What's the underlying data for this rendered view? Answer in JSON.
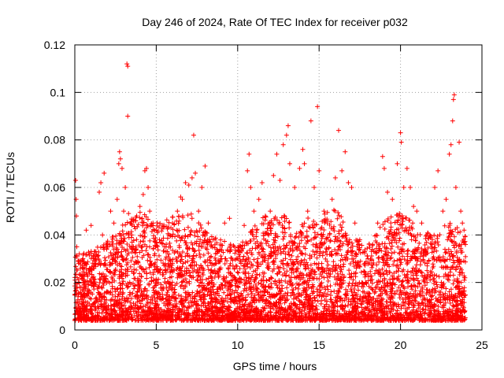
{
  "chart_data": {
    "type": "scatter",
    "title": "Day 246 of 2024, Rate Of TEC Index for receiver p032",
    "xlabel": "GPS time / hours",
    "ylabel": "ROTI / TECUs",
    "xlim": [
      0,
      25
    ],
    "ylim": [
      0,
      0.12
    ],
    "xticks": [
      0,
      5,
      10,
      15,
      20,
      25
    ],
    "xtick_labels": [
      "0",
      "5",
      "10",
      "15",
      "20",
      "25"
    ],
    "yticks": [
      0,
      0.02,
      0.04,
      0.06,
      0.08,
      0.1,
      0.12
    ],
    "ytick_labels": [
      "0",
      "0.02",
      "0.04",
      "0.06",
      "0.08",
      "0.1",
      "0.12"
    ],
    "grid": true,
    "marker": "plus",
    "marker_color": "#ff0000",
    "series": [
      {
        "name": "ROTI",
        "points": [
          [
            0.05,
            0.063
          ],
          [
            0.08,
            0.055
          ],
          [
            0.1,
            0.048
          ],
          [
            0.12,
            0.035
          ],
          [
            0.15,
            0.022
          ],
          [
            0.2,
            0.014
          ],
          [
            0.25,
            0.01
          ],
          [
            0.3,
            0.018
          ],
          [
            0.5,
            0.03
          ],
          [
            0.7,
            0.042
          ],
          [
            0.9,
            0.026
          ],
          [
            1.0,
            0.044
          ],
          [
            1.2,
            0.033
          ],
          [
            1.5,
            0.058
          ],
          [
            1.6,
            0.062
          ],
          [
            1.7,
            0.04
          ],
          [
            1.8,
            0.066
          ],
          [
            2.0,
            0.035
          ],
          [
            2.2,
            0.05
          ],
          [
            2.4,
            0.045
          ],
          [
            2.6,
            0.055
          ],
          [
            2.7,
            0.07
          ],
          [
            2.75,
            0.075
          ],
          [
            2.8,
            0.072
          ],
          [
            2.9,
            0.068
          ],
          [
            3.0,
            0.05
          ],
          [
            3.1,
            0.06
          ],
          [
            3.2,
            0.112
          ],
          [
            3.25,
            0.111
          ],
          [
            3.25,
            0.09
          ],
          [
            3.3,
            0.049
          ],
          [
            3.5,
            0.04
          ],
          [
            3.8,
            0.048
          ],
          [
            4.0,
            0.052
          ],
          [
            4.2,
            0.057
          ],
          [
            4.3,
            0.067
          ],
          [
            4.4,
            0.068
          ],
          [
            4.5,
            0.06
          ],
          [
            4.6,
            0.05
          ],
          [
            4.8,
            0.045
          ],
          [
            5.0,
            0.042
          ],
          [
            5.2,
            0.038
          ],
          [
            5.5,
            0.035
          ],
          [
            5.8,
            0.04
          ],
          [
            6.0,
            0.045
          ],
          [
            6.3,
            0.05
          ],
          [
            6.5,
            0.056
          ],
          [
            6.6,
            0.055
          ],
          [
            6.8,
            0.062
          ],
          [
            7.0,
            0.061
          ],
          [
            7.2,
            0.064
          ],
          [
            7.3,
            0.082
          ],
          [
            7.4,
            0.066
          ],
          [
            7.6,
            0.05
          ],
          [
            7.8,
            0.06
          ],
          [
            8.0,
            0.069
          ],
          [
            8.2,
            0.045
          ],
          [
            8.5,
            0.038
          ],
          [
            8.8,
            0.033
          ],
          [
            9.0,
            0.03
          ],
          [
            9.2,
            0.045
          ],
          [
            9.5,
            0.047
          ],
          [
            9.8,
            0.035
          ],
          [
            10.0,
            0.03
          ],
          [
            10.2,
            0.028
          ],
          [
            10.4,
            0.044
          ],
          [
            10.6,
            0.067
          ],
          [
            10.7,
            0.074
          ],
          [
            10.8,
            0.06
          ],
          [
            11.0,
            0.05
          ],
          [
            11.3,
            0.055
          ],
          [
            11.5,
            0.062
          ],
          [
            11.7,
            0.048
          ],
          [
            12.0,
            0.05
          ],
          [
            12.2,
            0.065
          ],
          [
            12.4,
            0.074
          ],
          [
            12.6,
            0.063
          ],
          [
            12.8,
            0.078
          ],
          [
            13.0,
            0.082
          ],
          [
            13.1,
            0.086
          ],
          [
            13.2,
            0.07
          ],
          [
            13.5,
            0.06
          ],
          [
            13.8,
            0.068
          ],
          [
            14.0,
            0.076
          ],
          [
            14.1,
            0.07
          ],
          [
            14.3,
            0.05
          ],
          [
            14.5,
            0.088
          ],
          [
            14.7,
            0.06
          ],
          [
            14.9,
            0.094
          ],
          [
            15.0,
            0.067
          ],
          [
            15.1,
            0.04
          ],
          [
            15.3,
            0.05
          ],
          [
            15.5,
            0.045
          ],
          [
            15.8,
            0.055
          ],
          [
            16.0,
            0.064
          ],
          [
            16.2,
            0.084
          ],
          [
            16.4,
            0.067
          ],
          [
            16.6,
            0.075
          ],
          [
            16.8,
            0.062
          ],
          [
            17.0,
            0.06
          ],
          [
            17.2,
            0.045
          ],
          [
            17.5,
            0.038
          ],
          [
            17.8,
            0.033
          ],
          [
            18.0,
            0.03
          ],
          [
            18.3,
            0.036
          ],
          [
            18.6,
            0.045
          ],
          [
            18.9,
            0.073
          ],
          [
            19.0,
            0.068
          ],
          [
            19.2,
            0.058
          ],
          [
            19.5,
            0.055
          ],
          [
            19.8,
            0.07
          ],
          [
            20.0,
            0.083
          ],
          [
            20.05,
            0.079
          ],
          [
            20.2,
            0.06
          ],
          [
            20.4,
            0.068
          ],
          [
            20.6,
            0.06
          ],
          [
            20.8,
            0.052
          ],
          [
            21.0,
            0.05
          ],
          [
            21.3,
            0.045
          ],
          [
            21.6,
            0.04
          ],
          [
            21.9,
            0.035
          ],
          [
            22.1,
            0.06
          ],
          [
            22.3,
            0.067
          ],
          [
            22.6,
            0.05
          ],
          [
            22.8,
            0.055
          ],
          [
            23.0,
            0.074
          ],
          [
            23.1,
            0.078
          ],
          [
            23.2,
            0.088
          ],
          [
            23.25,
            0.097
          ],
          [
            23.3,
            0.099
          ],
          [
            23.4,
            0.06
          ],
          [
            23.6,
            0.079
          ],
          [
            23.7,
            0.05
          ],
          [
            23.8,
            0.045
          ],
          [
            23.9,
            0.042
          ]
        ]
      }
    ],
    "dense_band": {
      "description_ranges_hours": [
        0,
        24
      ],
      "typical_range": [
        0.004,
        0.045
      ],
      "peak_envelope": [
        [
          0,
          0.032
        ],
        [
          1,
          0.034
        ],
        [
          2,
          0.038
        ],
        [
          3,
          0.045
        ],
        [
          4,
          0.05
        ],
        [
          5,
          0.045
        ],
        [
          6,
          0.048
        ],
        [
          7,
          0.05
        ],
        [
          8,
          0.042
        ],
        [
          9,
          0.038
        ],
        [
          10,
          0.036
        ],
        [
          11,
          0.044
        ],
        [
          12,
          0.05
        ],
        [
          13,
          0.048
        ],
        [
          14,
          0.046
        ],
        [
          15,
          0.05
        ],
        [
          16,
          0.052
        ],
        [
          17,
          0.04
        ],
        [
          18,
          0.036
        ],
        [
          19,
          0.046
        ],
        [
          20,
          0.05
        ],
        [
          21,
          0.044
        ],
        [
          22,
          0.04
        ],
        [
          23,
          0.046
        ],
        [
          24,
          0.04
        ]
      ]
    }
  }
}
